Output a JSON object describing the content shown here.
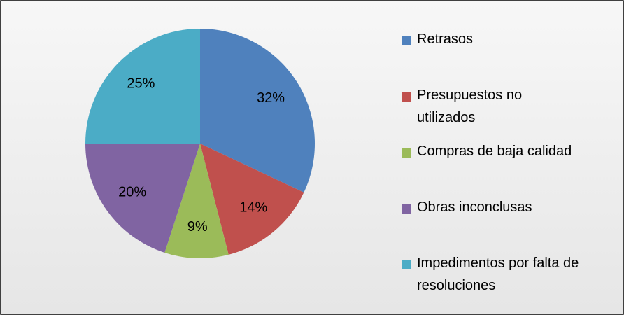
{
  "chart_data": {
    "type": "pie",
    "categories": [
      "Retrasos",
      "Presupuestos no utilizados",
      "Compras de baja calidad",
      "Obras inconclusas",
      "Impedimentos por falta de resoluciones"
    ],
    "values": [
      32,
      14,
      9,
      20,
      25
    ],
    "value_labels": [
      "32%",
      "14%",
      "9%",
      "20%",
      "25%"
    ],
    "colors": [
      "#4f81bd",
      "#c0504d",
      "#9bbb59",
      "#8064a2",
      "#4bacc6"
    ],
    "legend": "right"
  }
}
